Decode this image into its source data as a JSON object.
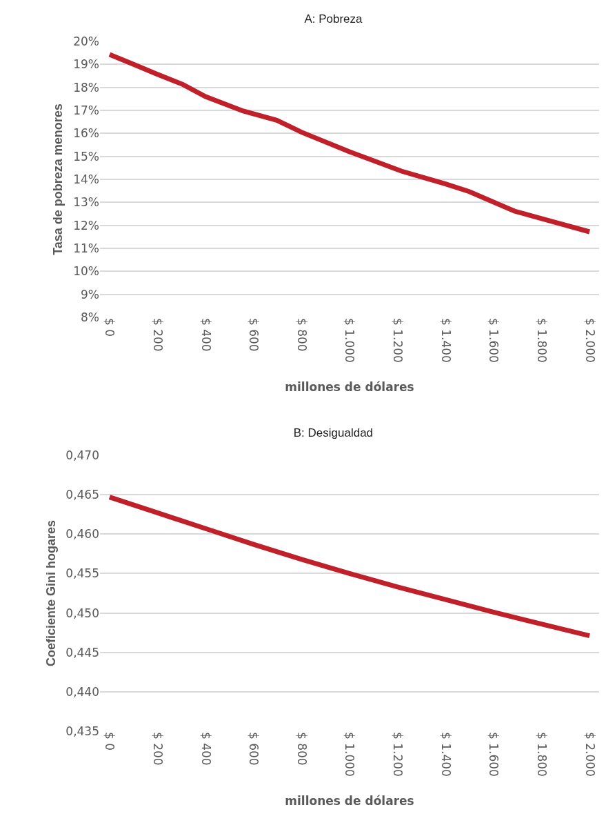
{
  "chart_data": [
    {
      "type": "line",
      "title": "A: Pobreza",
      "xlabel": "millones de dólares",
      "ylabel": "Tasa de pobreza menores",
      "x": [
        0,
        100,
        196,
        305,
        400,
        557,
        697,
        800,
        1000,
        1216,
        1400,
        1499,
        1687,
        1829,
        2000
      ],
      "series": [
        {
          "color": "#c0202a",
          "values": [
            19.43,
            19.0,
            18.58,
            18.13,
            17.6,
            16.97,
            16.57,
            16.05,
            15.2,
            14.36,
            13.8,
            13.47,
            12.62,
            12.21,
            11.72
          ]
        }
      ],
      "xlim": [
        -40,
        2040
      ],
      "xticks": [
        {
          "value": 0,
          "label": "$ 0"
        },
        {
          "value": 200,
          "label": "$ 200"
        },
        {
          "value": 400,
          "label": "$ 400"
        },
        {
          "value": 600,
          "label": "$ 600"
        },
        {
          "value": 800,
          "label": "$ 800"
        },
        {
          "value": 1000,
          "label": "$ 1.000"
        },
        {
          "value": 1200,
          "label": "$ 1.200"
        },
        {
          "value": 1400,
          "label": "$ 1.400"
        },
        {
          "value": 1600,
          "label": "$ 1.600"
        },
        {
          "value": 1800,
          "label": "$ 1.800"
        },
        {
          "value": 2000,
          "label": "$ 2.000"
        }
      ],
      "ylim": [
        8,
        20
      ],
      "yticks": [
        {
          "value": 8,
          "label": "8%"
        },
        {
          "value": 9,
          "label": "9%"
        },
        {
          "value": 10,
          "label": "10%"
        },
        {
          "value": 11,
          "label": "11%"
        },
        {
          "value": 12,
          "label": "12%"
        },
        {
          "value": 13,
          "label": "13%"
        },
        {
          "value": 14,
          "label": "14%"
        },
        {
          "value": 15,
          "label": "15%"
        },
        {
          "value": 16,
          "label": "16%"
        },
        {
          "value": 17,
          "label": "17%"
        },
        {
          "value": 18,
          "label": "18%"
        },
        {
          "value": 19,
          "label": "19%"
        },
        {
          "value": 20,
          "label": "20%"
        }
      ],
      "grid": "y",
      "marker": "none",
      "line_style": "solid"
    },
    {
      "type": "line",
      "title": "B: Desigualdad",
      "xlabel": "millones de dólares",
      "ylabel": "Coeficiente Gini hogares",
      "x": [
        0,
        200,
        400,
        600,
        800,
        1000,
        1200,
        1400,
        1600,
        1800,
        2000
      ],
      "series": [
        {
          "color": "#c0202a",
          "values": [
            0.4647,
            0.4627,
            0.4607,
            0.4587,
            0.4568,
            0.455,
            0.4533,
            0.4517,
            0.4501,
            0.4486,
            0.4471
          ]
        }
      ],
      "xlim": [
        -40,
        2040
      ],
      "xticks": [
        {
          "value": 0,
          "label": "$ 0"
        },
        {
          "value": 200,
          "label": "$ 200"
        },
        {
          "value": 400,
          "label": "$ 400"
        },
        {
          "value": 600,
          "label": "$ 600"
        },
        {
          "value": 800,
          "label": "$ 800"
        },
        {
          "value": 1000,
          "label": "$ 1.000"
        },
        {
          "value": 1200,
          "label": "$ 1.200"
        },
        {
          "value": 1400,
          "label": "$ 1.400"
        },
        {
          "value": 1600,
          "label": "$ 1.600"
        },
        {
          "value": 1800,
          "label": "$ 1.800"
        },
        {
          "value": 2000,
          "label": "$ 2.000"
        }
      ],
      "ylim": [
        0.435,
        0.47
      ],
      "yticks": [
        {
          "value": 0.435,
          "label": "0,435"
        },
        {
          "value": 0.44,
          "label": "0,440"
        },
        {
          "value": 0.445,
          "label": "0,445"
        },
        {
          "value": 0.45,
          "label": "0,450"
        },
        {
          "value": 0.455,
          "label": "0,455"
        },
        {
          "value": 0.46,
          "label": "0,460"
        },
        {
          "value": 0.465,
          "label": "0,465"
        },
        {
          "value": 0.47,
          "label": "0,470"
        }
      ],
      "grid": "y",
      "marker": "none",
      "line_style": "solid"
    }
  ]
}
